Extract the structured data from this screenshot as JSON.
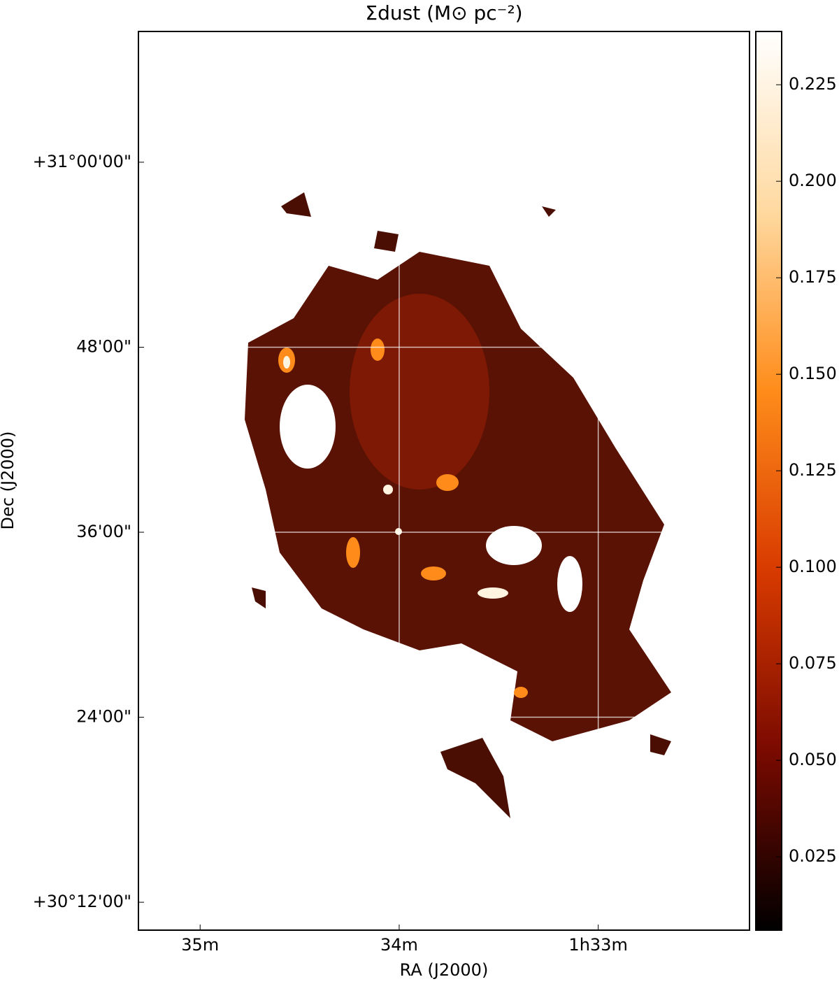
{
  "chart_data": {
    "type": "image",
    "title": "Σdust (M⊙ pc⁻²)",
    "xlabel": "RA (J2000)",
    "ylabel": "Dec (J2000)",
    "xlim": [
      35.31,
      32.24
    ],
    "xticks": [
      {
        "value": 35,
        "label": "35m"
      },
      {
        "value": 34,
        "label": "34m"
      },
      {
        "value": 33,
        "label": "1h33m"
      }
    ],
    "ylim": [
      10.19,
      68.48
    ],
    "yticks": [
      {
        "value": 12,
        "label": "+30°12'00\""
      },
      {
        "value": 24,
        "label": "24'00\""
      },
      {
        "value": 36,
        "label": "36'00\""
      },
      {
        "value": 48,
        "label": "48'00\""
      },
      {
        "value": 60,
        "label": "+31°00'00\""
      }
    ],
    "clim": [
      0.006,
      0.2388
    ],
    "cticks": [
      {
        "value": 0.025,
        "label": "0.025"
      },
      {
        "value": 0.05,
        "label": "0.050"
      },
      {
        "value": 0.075,
        "label": "0.075"
      },
      {
        "value": 0.1,
        "label": "0.100"
      },
      {
        "value": 0.125,
        "label": "0.125"
      },
      {
        "value": 0.15,
        "label": "0.150"
      },
      {
        "value": 0.175,
        "label": "0.175"
      },
      {
        "value": 0.2,
        "label": "0.200"
      },
      {
        "value": 0.225,
        "label": "0.225"
      }
    ],
    "colormap": [
      "#000000",
      "#7a0a00",
      "#d83a00",
      "#ff8c1a",
      "#ffd9a0",
      "#ffffff"
    ],
    "grid": true,
    "grid_color": "#ffffff"
  }
}
